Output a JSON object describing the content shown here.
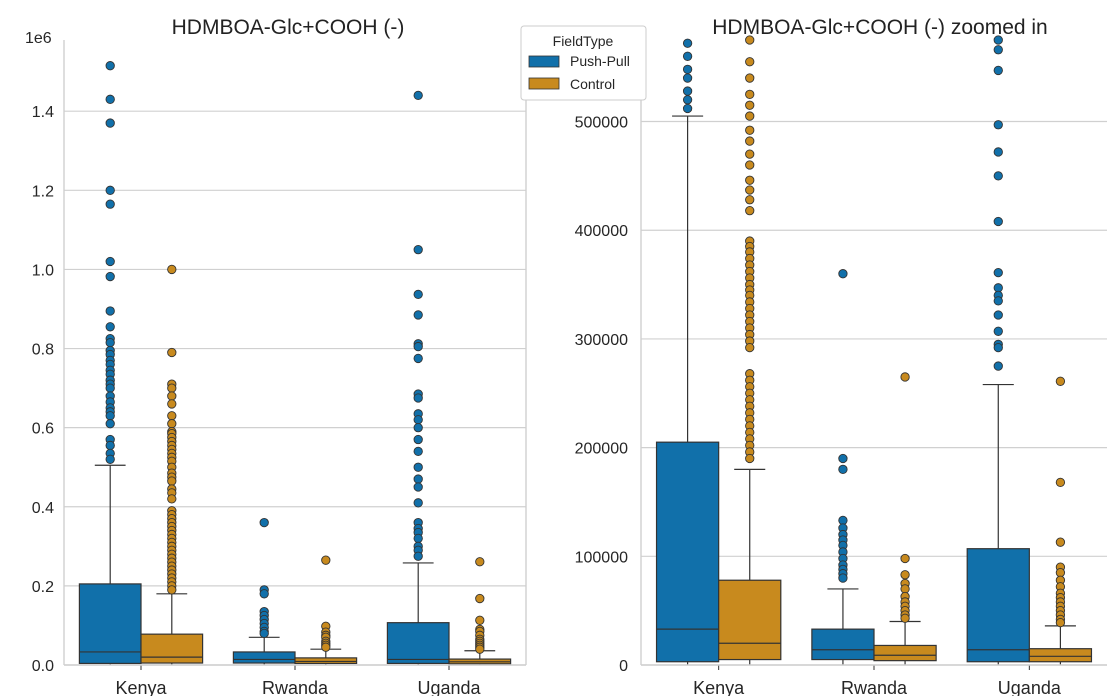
{
  "legend": {
    "title": "FieldType",
    "entries": [
      {
        "name": "Push-Pull",
        "color": "#1170aa"
      },
      {
        "name": "Control",
        "color": "#c88a1e"
      }
    ]
  },
  "chart_data": [
    {
      "type": "box",
      "title": "HDMBOA-Glc+COOH (-)",
      "xlabel": "",
      "ylabel": "",
      "y_offset_label": "1e6",
      "y_unit_multiplier": 1000000,
      "categories": [
        "Kenya",
        "Rwanda",
        "Uganda"
      ],
      "ylim": [
        0,
        1.58
      ],
      "yticks": [
        0,
        0.2,
        0.4,
        0.6,
        0.8,
        1.0,
        1.2,
        1.4
      ],
      "ytick_labels": [
        "0.0",
        "0.2",
        "0.4",
        "0.6",
        "0.8",
        "1.0",
        "1.2",
        "1.4"
      ],
      "grid": true,
      "series": [
        {
          "name": "Push-Pull",
          "color": "#1170aa",
          "boxes": [
            {
              "whisker_low": 0.0,
              "q1": 0.004,
              "median": 0.033,
              "q3": 0.205,
              "whisker_high": 0.505,
              "outliers": [
                1.515,
                1.43,
                1.37,
                1.2,
                1.165,
                1.02,
                0.982,
                0.895,
                0.855,
                0.825,
                0.815,
                0.795,
                0.785,
                0.77,
                0.76,
                0.745,
                0.735,
                0.72,
                0.71,
                0.7,
                0.68,
                0.665,
                0.65,
                0.64,
                0.63,
                0.61,
                0.57,
                0.555,
                0.535,
                0.52
              ]
            },
            {
              "whisker_low": 0.0,
              "q1": 0.005,
              "median": 0.014,
              "q3": 0.033,
              "whisker_high": 0.07,
              "outliers": [
                0.36,
                0.19,
                0.18,
                0.135,
                0.125,
                0.115,
                0.105,
                0.095,
                0.085,
                0.08
              ]
            },
            {
              "whisker_low": 0.0,
              "q1": 0.004,
              "median": 0.014,
              "q3": 0.107,
              "whisker_high": 0.258,
              "outliers": [
                1.44,
                1.05,
                0.937,
                0.885,
                0.812,
                0.805,
                0.775,
                0.685,
                0.675,
                0.635,
                0.62,
                0.6,
                0.57,
                0.54,
                0.5,
                0.47,
                0.45,
                0.41,
                0.36,
                0.345,
                0.335,
                0.32,
                0.3,
                0.29,
                0.275
              ]
            }
          ]
        },
        {
          "name": "Control",
          "color": "#c88a1e",
          "boxes": [
            {
              "whisker_low": 0.0,
              "q1": 0.005,
              "median": 0.02,
              "q3": 0.078,
              "whisker_high": 0.18,
              "outliers": [
                1.0,
                0.79,
                0.71,
                0.7,
                0.68,
                0.66,
                0.63,
                0.61,
                0.59,
                0.585,
                0.575,
                0.565,
                0.555,
                0.545,
                0.535,
                0.525,
                0.515,
                0.5,
                0.485,
                0.475,
                0.465,
                0.445,
                0.435,
                0.42,
                0.39,
                0.38,
                0.37,
                0.36,
                0.35,
                0.34,
                0.33,
                0.32,
                0.31,
                0.3,
                0.29,
                0.28,
                0.27,
                0.26,
                0.25,
                0.24,
                0.23,
                0.22,
                0.21,
                0.2,
                0.19
              ]
            },
            {
              "whisker_low": 0.0,
              "q1": 0.004,
              "median": 0.009,
              "q3": 0.018,
              "whisker_high": 0.04,
              "outliers": [
                0.265,
                0.098,
                0.083,
                0.075,
                0.07,
                0.06,
                0.055,
                0.05,
                0.045
              ]
            },
            {
              "whisker_low": 0.0,
              "q1": 0.003,
              "median": 0.008,
              "q3": 0.015,
              "whisker_high": 0.036,
              "outliers": [
                0.261,
                0.168,
                0.113,
                0.09,
                0.085,
                0.075,
                0.065,
                0.06,
                0.055,
                0.05,
                0.045,
                0.04
              ]
            }
          ]
        }
      ]
    },
    {
      "type": "box",
      "title": "HDMBOA-Glc+COOH (-) zoomed in",
      "xlabel": "",
      "ylabel": "",
      "categories": [
        "Kenya",
        "Rwanda",
        "Uganda"
      ],
      "ylim": [
        0,
        575000
      ],
      "yticks": [
        0,
        100000,
        200000,
        300000,
        400000,
        500000
      ],
      "ytick_labels": [
        "0",
        "100000",
        "200000",
        "300000",
        "400000",
        "500000"
      ],
      "grid": true,
      "series": [
        {
          "name": "Push-Pull",
          "color": "#1170aa",
          "boxes": [
            {
              "whisker_low": 0,
              "q1": 3000,
              "median": 33000,
              "q3": 205000,
              "whisker_high": 505000,
              "outliers": [
                572000,
                560000,
                548000,
                540000,
                528000,
                520000,
                512000
              ]
            },
            {
              "whisker_low": 0,
              "q1": 5000,
              "median": 14000,
              "q3": 33000,
              "whisker_high": 70000,
              "outliers": [
                360000,
                190000,
                180000,
                133000,
                126000,
                120000,
                115000,
                110000,
                104000,
                98000,
                92000,
                88000,
                84000,
                80000
              ]
            },
            {
              "whisker_low": 0,
              "q1": 3000,
              "median": 14000,
              "q3": 107000,
              "whisker_high": 258000,
              "outliers": [
                575000,
                566000,
                547000,
                497000,
                472000,
                450000,
                408000,
                361000,
                347000,
                340000,
                335000,
                322000,
                307000,
                295000,
                292000,
                275000
              ]
            }
          ]
        },
        {
          "name": "Control",
          "color": "#c88a1e",
          "boxes": [
            {
              "whisker_low": 0,
              "q1": 5000,
              "median": 20000,
              "q3": 78000,
              "whisker_high": 180000,
              "outliers": [
                575000,
                555000,
                540000,
                525000,
                515000,
                505000,
                492000,
                482000,
                470000,
                460000,
                446000,
                437000,
                428000,
                418000,
                390000,
                385000,
                380000,
                374000,
                368000,
                362000,
                356000,
                350000,
                345000,
                340000,
                334000,
                328000,
                322000,
                316000,
                310000,
                304000,
                298000,
                292000,
                268000,
                262000,
                256000,
                250000,
                244000,
                238000,
                232000,
                226000,
                220000,
                214000,
                208000,
                202000,
                196000,
                190000
              ]
            },
            {
              "whisker_low": 0,
              "q1": 4000,
              "median": 9000,
              "q3": 18000,
              "whisker_high": 40000,
              "outliers": [
                265000,
                98000,
                83000,
                75000,
                70000,
                63000,
                58000,
                54000,
                50000,
                46000,
                43000
              ]
            },
            {
              "whisker_low": 0,
              "q1": 3000,
              "median": 8000,
              "q3": 15000,
              "whisker_high": 36000,
              "outliers": [
                261000,
                168000,
                113000,
                90000,
                85000,
                78000,
                72000,
                66000,
                62000,
                58000,
                54000,
                50000,
                46000,
                42000,
                39000
              ]
            }
          ]
        }
      ]
    }
  ]
}
